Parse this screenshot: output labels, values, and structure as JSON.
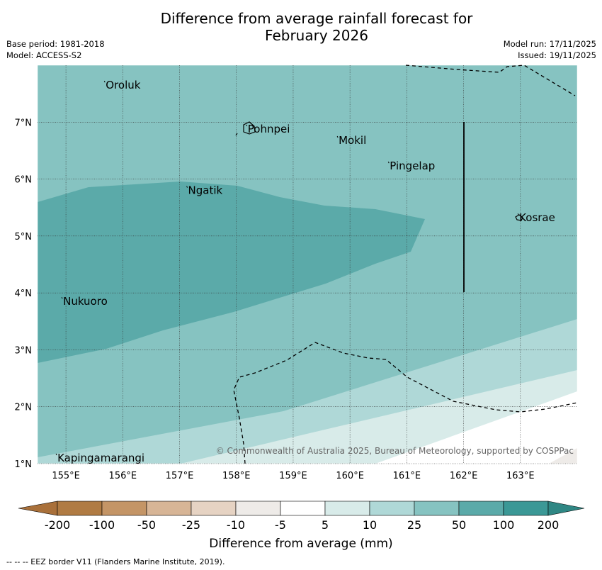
{
  "header": {
    "title_line1": "Difference from average rainfall forecast for",
    "title_line2": "February 2026",
    "base_period": "Base period: 1981-2018",
    "model": "Model: ACCESS-S2",
    "model_run": "Model run: 17/11/2025",
    "issued": "Issued: 19/11/2025"
  },
  "map": {
    "lon_range": [
      154.5,
      164.0
    ],
    "lat_range": [
      1.0,
      8.0
    ],
    "lon_ticks": [
      "155°E",
      "156°E",
      "157°E",
      "158°E",
      "159°E",
      "160°E",
      "161°E",
      "162°E",
      "163°E"
    ],
    "lat_ticks": [
      "1°N",
      "2°N",
      "3°N",
      "4°N",
      "5°N",
      "6°N",
      "7°N"
    ],
    "places": [
      {
        "name": "Oroluk",
        "lon": 155.7,
        "lat": 7.65
      },
      {
        "name": "Pohnpei",
        "lon": 158.2,
        "lat": 6.88
      },
      {
        "name": "Mokil",
        "lon": 159.8,
        "lat": 6.68
      },
      {
        "name": "Pingelap",
        "lon": 160.7,
        "lat": 6.23
      },
      {
        "name": "Ngatik",
        "lon": 157.15,
        "lat": 5.8
      },
      {
        "name": "Kosrae",
        "lon": 162.98,
        "lat": 5.32
      },
      {
        "name": "Nukuoro",
        "lon": 154.95,
        "lat": 3.85
      },
      {
        "name": "Kapingamarangi",
        "lon": 154.85,
        "lat": 1.1
      }
    ],
    "copyright": "© Commonwealth of Australia 2025, Bureau of Meteorology, supported by COSPPac"
  },
  "legend": {
    "labels": [
      "-200",
      "-100",
      "-50",
      "-25",
      "-10",
      "-5",
      "5",
      "10",
      "25",
      "50",
      "100",
      "200"
    ],
    "colors": [
      "#a9703a",
      "#b07b43",
      "#c49566",
      "#d7b596",
      "#e6d3c3",
      "#eeebe8",
      "#ffffff",
      "#d8ebe9",
      "#afd8d7",
      "#86c3c1",
      "#5baaa9",
      "#3b9896",
      "#2f8784"
    ],
    "title": "Difference from average (mm)"
  },
  "footer": "--  --  -- EEZ border V11 (Flanders Marine Institute, 2019)."
}
